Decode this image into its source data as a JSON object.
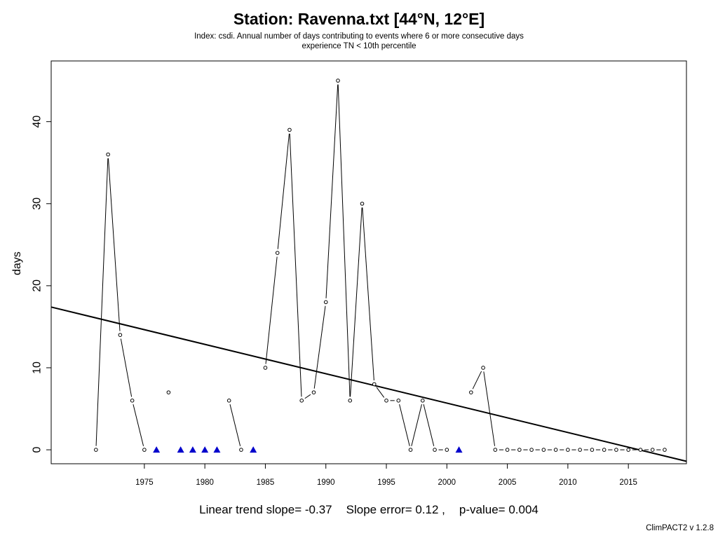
{
  "header": {
    "title": "Station: Ravenna.txt [44°N, 12°E]",
    "subtitle_line1": "Index: csdi. Annual number of days contributing to events where 6 or more consecutive days",
    "subtitle_line2": "experience TN < 10th percentile"
  },
  "footer": {
    "slope_text": "Linear trend slope= -0.37",
    "error_text": "Slope error= 0.12 ,",
    "pvalue_text": "p-value= 0.004",
    "version": "ClimPACT2 v 1.2.8"
  },
  "chart_data": {
    "type": "line",
    "title": "Station: Ravenna.txt [44°N, 12°E]",
    "xlabel": "",
    "ylabel": "days",
    "xlim": [
      1967.3,
      2019.8
    ],
    "ylim": [
      -1.7,
      47.4
    ],
    "x_ticks": [
      1975,
      1980,
      1985,
      1990,
      1995,
      2000,
      2005,
      2010,
      2015
    ],
    "y_ticks": [
      0,
      10,
      20,
      30,
      40
    ],
    "grid": false,
    "series": [
      {
        "points": [
          [
            1971,
            0
          ],
          [
            1972,
            36
          ],
          [
            1973,
            14
          ],
          [
            1974,
            6
          ],
          [
            1975,
            0
          ],
          [
            1976,
            null
          ],
          [
            1977,
            7
          ],
          [
            1978,
            null
          ],
          [
            1979,
            null
          ],
          [
            1980,
            null
          ],
          [
            1981,
            null
          ],
          [
            1982,
            6
          ],
          [
            1983,
            0
          ],
          [
            1984,
            null
          ],
          [
            1985,
            10
          ],
          [
            1986,
            24
          ],
          [
            1987,
            39
          ],
          [
            1988,
            6
          ],
          [
            1989,
            7
          ],
          [
            1990,
            18
          ],
          [
            1991,
            45
          ],
          [
            1992,
            6
          ],
          [
            1993,
            30
          ],
          [
            1994,
            8
          ],
          [
            1995,
            6
          ],
          [
            1996,
            6
          ],
          [
            1997,
            0
          ],
          [
            1998,
            6
          ],
          [
            1999,
            0
          ],
          [
            2000,
            0
          ],
          [
            2001,
            null
          ],
          [
            2002,
            7
          ],
          [
            2003,
            10
          ],
          [
            2004,
            0
          ],
          [
            2005,
            0
          ],
          [
            2006,
            0
          ],
          [
            2007,
            0
          ],
          [
            2008,
            0
          ],
          [
            2009,
            0
          ],
          [
            2010,
            0
          ],
          [
            2011,
            0
          ],
          [
            2012,
            0
          ],
          [
            2013,
            0
          ],
          [
            2014,
            0
          ],
          [
            2015,
            0
          ],
          [
            2016,
            0
          ],
          [
            2017,
            0
          ],
          [
            2018,
            0
          ]
        ]
      }
    ],
    "missing_years": [
      1976,
      1978,
      1979,
      1980,
      1981,
      1984,
      2001
    ],
    "trend": {
      "slope": -0.37,
      "x0": 1967.3,
      "y0": 17.4,
      "x1": 2019.8,
      "y1": -1.4
    },
    "colors": {
      "line": "#000000",
      "missing_marker": "#0000cc",
      "trend": "#000000"
    }
  }
}
